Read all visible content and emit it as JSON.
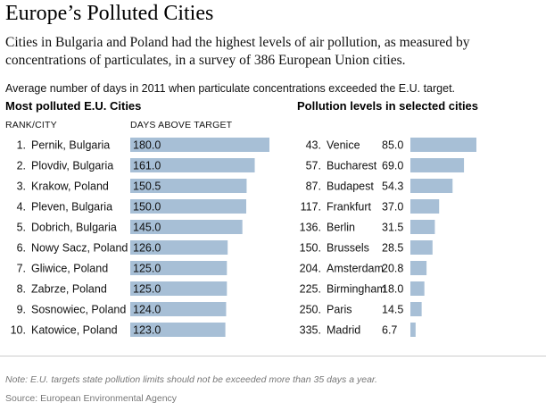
{
  "title": "Europe’s Polluted Cities",
  "subtitle": "Cities in Bulgaria and Poland had the highest levels of air pollution, as measured by concentrations of particulates, in a survey of 386 European Union cities.",
  "intro": "Average number of days in 2011 when particulate concentrations exceeded the E.U. target.",
  "note": "Note: E.U. targets state pollution limits should not be exceeded more than 35 days a year.",
  "source": "Source: European Environmental Agency",
  "bar_color": "#a7bfd6",
  "chart_data": [
    {
      "type": "bar",
      "title": "Most polluted E.U. Cities",
      "rank_header": "RANK/CITY",
      "value_header": "DAYS ABOVE TARGET",
      "ylim": [
        0,
        180
      ],
      "rows": [
        {
          "rank": "1.",
          "city": "Pernik, Bulgaria",
          "value": 180.0,
          "label": "180.0"
        },
        {
          "rank": "2.",
          "city": "Plovdiv, Bulgaria",
          "value": 161.0,
          "label": "161.0"
        },
        {
          "rank": "3.",
          "city": "Krakow, Poland",
          "value": 150.5,
          "label": "150.5"
        },
        {
          "rank": "4.",
          "city": "Pleven, Bulgaria",
          "value": 150.0,
          "label": "150.0"
        },
        {
          "rank": "5.",
          "city": "Dobrich, Bulgaria",
          "value": 145.0,
          "label": "145.0"
        },
        {
          "rank": "6.",
          "city": "Nowy Sacz, Poland",
          "value": 126.0,
          "label": "126.0"
        },
        {
          "rank": "7.",
          "city": "Gliwice, Poland",
          "value": 125.0,
          "label": "125.0"
        },
        {
          "rank": "8.",
          "city": "Zabrze, Poland",
          "value": 125.0,
          "label": "125.0"
        },
        {
          "rank": "9.",
          "city": "Sosnowiec, Poland",
          "value": 124.0,
          "label": "124.0"
        },
        {
          "rank": "10.",
          "city": "Katowice, Poland",
          "value": 123.0,
          "label": "123.0"
        }
      ]
    },
    {
      "type": "bar",
      "title": "Pollution levels in selected cities",
      "ylim": [
        0,
        85
      ],
      "rows": [
        {
          "rank": "43.",
          "city": "Venice",
          "value": 85.0,
          "label": "85.0"
        },
        {
          "rank": "57.",
          "city": "Bucharest",
          "value": 69.0,
          "label": "69.0"
        },
        {
          "rank": "87.",
          "city": "Budapest",
          "value": 54.3,
          "label": "54.3"
        },
        {
          "rank": "117.",
          "city": "Frankfurt",
          "value": 37.0,
          "label": "37.0"
        },
        {
          "rank": "136.",
          "city": "Berlin",
          "value": 31.5,
          "label": "31.5"
        },
        {
          "rank": "150.",
          "city": "Brussels",
          "value": 28.5,
          "label": "28.5"
        },
        {
          "rank": "204.",
          "city": "Amsterdam",
          "value": 20.8,
          "label": "20.8"
        },
        {
          "rank": "225.",
          "city": "Birmingham",
          "value": 18.0,
          "label": "18.0"
        },
        {
          "rank": "250.",
          "city": "Paris",
          "value": 14.5,
          "label": "14.5"
        },
        {
          "rank": "335.",
          "city": "Madrid",
          "value": 6.7,
          "label": "6.7"
        }
      ]
    }
  ]
}
